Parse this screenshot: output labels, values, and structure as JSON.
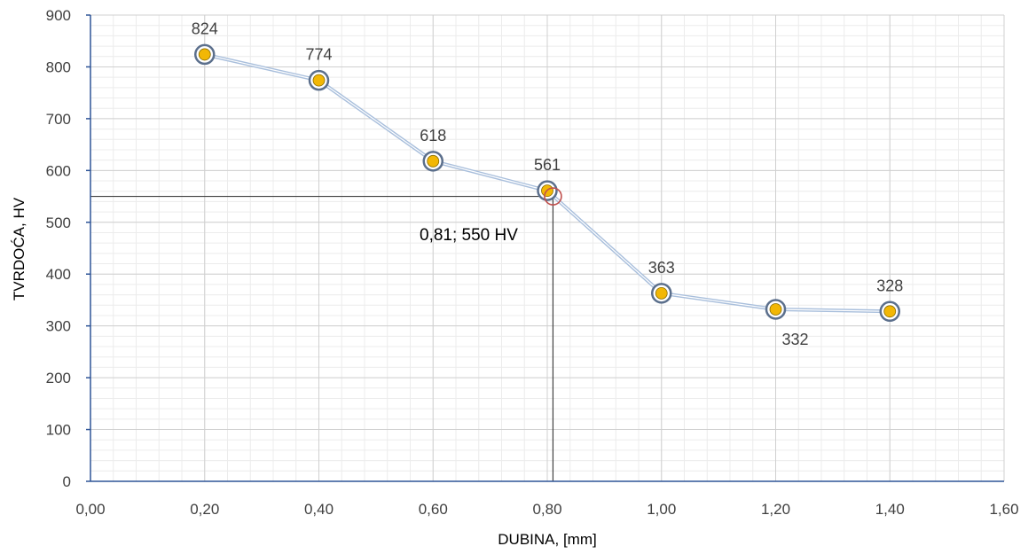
{
  "chart_data": {
    "type": "scatter",
    "title": "",
    "xlabel": "DUBINA, [mm]",
    "ylabel": "TVRDOĆA, HV",
    "xlim": [
      0,
      1.6
    ],
    "ylim": [
      0,
      900
    ],
    "x_ticks": [
      0,
      0.2,
      0.4,
      0.6,
      0.8,
      1.0,
      1.2,
      1.4,
      1.6
    ],
    "x_tick_labels": [
      "0,00",
      "0,20",
      "0,40",
      "0,60",
      "0,80",
      "1,00",
      "1,20",
      "1,40",
      "1,60"
    ],
    "y_ticks": [
      0,
      100,
      200,
      300,
      400,
      500,
      600,
      700,
      800,
      900
    ],
    "y_tick_labels": [
      "0",
      "100",
      "200",
      "300",
      "400",
      "500",
      "600",
      "700",
      "800",
      "900"
    ],
    "grid": true,
    "legend": "none",
    "series": [
      {
        "x": [
          0.2,
          0.4,
          0.6,
          0.8,
          1.0,
          1.2,
          1.4
        ],
        "y": [
          824,
          774,
          618,
          561,
          363,
          332,
          328
        ],
        "labels": [
          "824",
          "774",
          "618",
          "561",
          "363",
          "332",
          "328"
        ],
        "line_color": "#a9bfdc",
        "marker_fill": "#f2b705",
        "marker_ring": "#5b6f8c"
      }
    ],
    "reference_point": {
      "x": 0.81,
      "y": 550,
      "label": "0,81; 550 HV",
      "marker_color": "#c0504d",
      "line_color": "#404040"
    }
  }
}
